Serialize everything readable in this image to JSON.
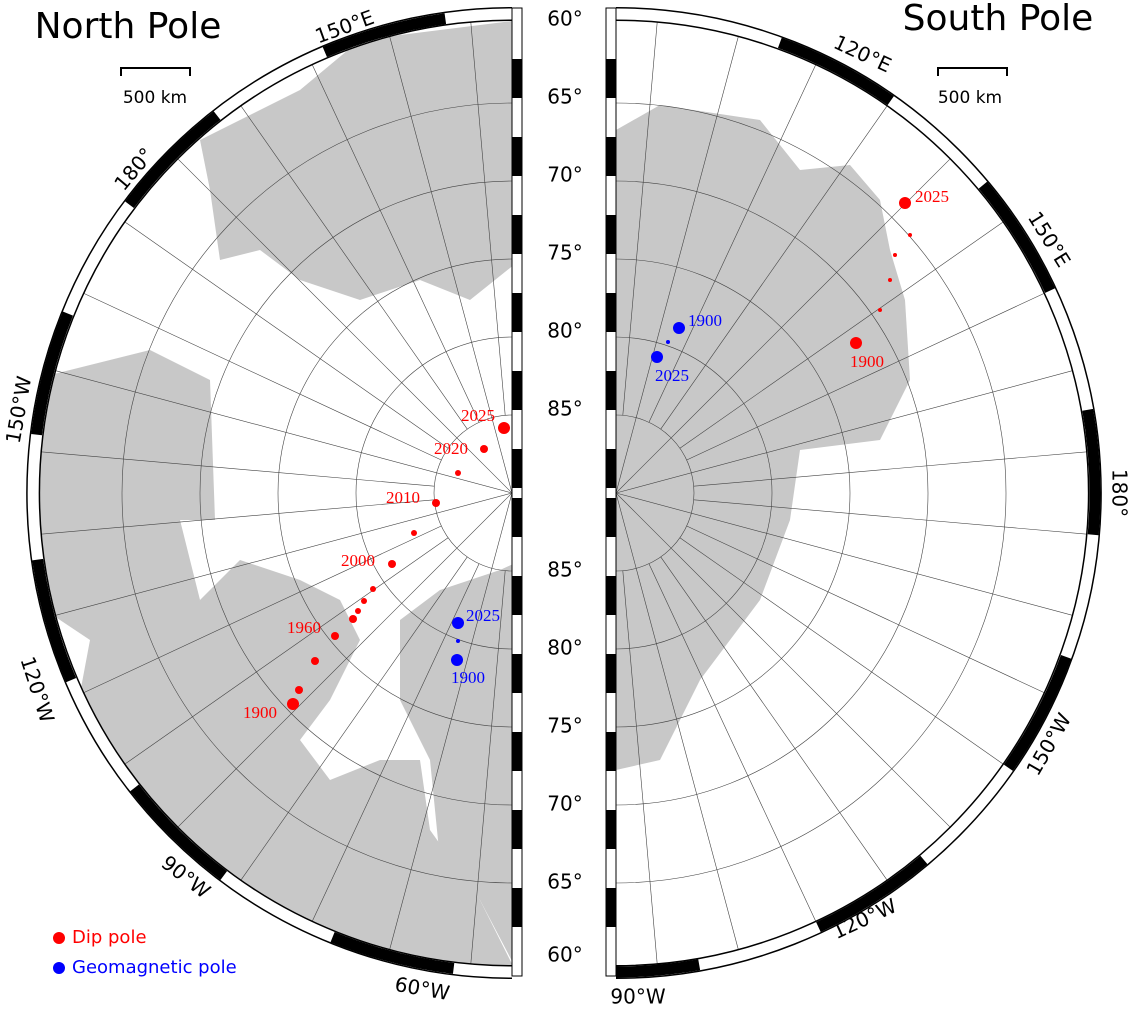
{
  "north": {
    "title": "North Pole",
    "scale": "500 km",
    "lon_labels": [
      "150°E",
      "180°",
      "150°W",
      "120°W",
      "90°W",
      "60°W"
    ],
    "dip_years": [
      "1900",
      "1960",
      "2000",
      "2010",
      "2020",
      "2025"
    ],
    "geo_years": [
      "1900",
      "2025"
    ]
  },
  "south": {
    "title": "South Pole",
    "scale": "500 km",
    "lon_labels": [
      "120°E",
      "150°E",
      "180°",
      "150°W",
      "120°W",
      "90°W"
    ],
    "dip_years": [
      "1900",
      "2025"
    ],
    "geo_years": [
      "1900",
      "2025"
    ]
  },
  "lat_labels": {
    "upper": [
      "60°",
      "65°",
      "70°",
      "75°",
      "80°",
      "85°"
    ],
    "lower": [
      "85°",
      "80°",
      "75°",
      "70°",
      "65°",
      "60°"
    ]
  },
  "legend": {
    "dip": "Dip pole",
    "geo": "Geomagnetic pole"
  }
}
